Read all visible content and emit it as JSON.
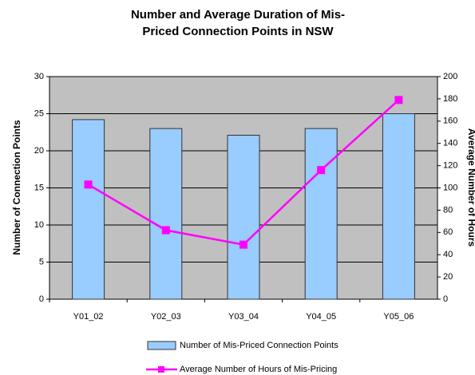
{
  "chart_data": {
    "type": "bar-line",
    "title": "Number and Average Duration of Mis-Priced Connection Points in NSW",
    "ylabel": "Number of Connection Points",
    "y2label": "Average Number of Hours",
    "categories": [
      "Y01_02",
      "Y02_03",
      "Y03_04",
      "Y04_05",
      "Y05_06"
    ],
    "series": [
      {
        "name": "Number of Mis-Priced Connection Points",
        "color": "#99ccff",
        "type": "bar",
        "values": [
          24.2,
          23,
          22.1,
          23,
          25
        ]
      },
      {
        "name": "Average Number of Hours of Mis-Pricing",
        "color": "#ff00ff",
        "type": "line",
        "axis": "y2",
        "values": [
          103,
          62,
          49,
          116,
          179
        ]
      }
    ],
    "ylim": [
      0,
      30
    ],
    "yticks": [
      0,
      5,
      10,
      15,
      20,
      25,
      30
    ],
    "y2lim": [
      0,
      200
    ],
    "y2ticks": [
      0,
      20,
      40,
      60,
      80,
      100,
      120,
      140,
      160,
      180,
      200
    ],
    "grid": true,
    "legend": "bottom"
  }
}
